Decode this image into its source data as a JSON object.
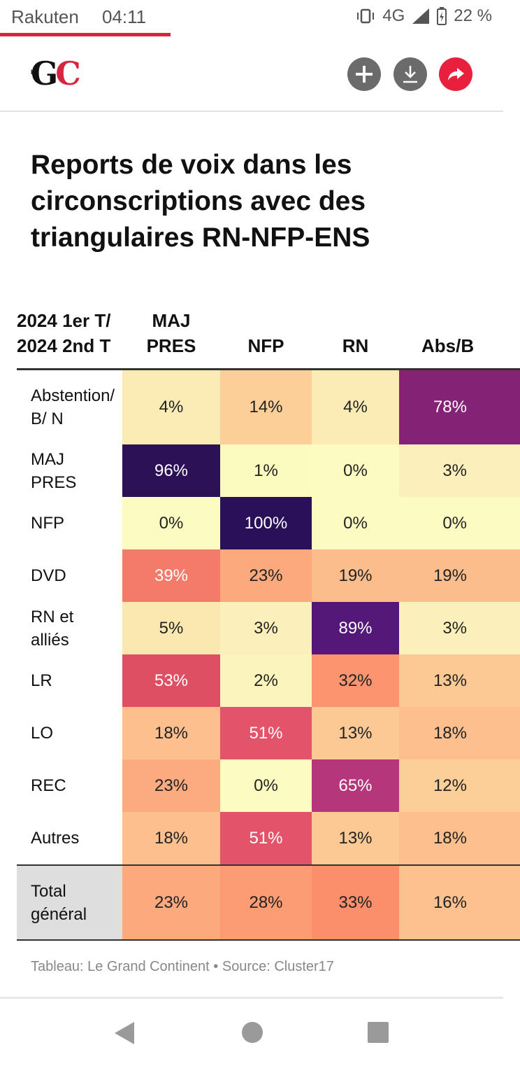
{
  "status_bar": {
    "carrier": "Rakuten",
    "time": "04:11",
    "network": "4G",
    "battery": "22 %"
  },
  "header": {
    "logo_small": "LE",
    "logo_g": "G",
    "logo_c": "C"
  },
  "article": {
    "title": "Reports de voix dans les circonscriptions avec des triangulaires RN-NFP-ENS",
    "caption": "Tableau: Le Grand Continent • Source: Cluster17"
  },
  "colors": {
    "accent_red": "#e8203e",
    "brand_red": "#d8253f"
  },
  "chart_data": {
    "type": "table",
    "row_header": "2024 1er T/ 2024 2nd T",
    "columns": [
      "MAJ PRES",
      "NFP",
      "RN",
      "Abs/B"
    ],
    "rows": [
      {
        "label": "Abstention/ B/ N",
        "values": [
          "4%",
          "14%",
          "4%",
          "78%"
        ],
        "colors": [
          "#fbebb4",
          "#fccf98",
          "#fbebb4",
          "#842276"
        ],
        "dark": [
          false,
          false,
          false,
          true
        ]
      },
      {
        "label": "MAJ PRES",
        "values": [
          "96%",
          "1%",
          "0%",
          "3%"
        ],
        "colors": [
          "#2c1157",
          "#fbfbc0",
          "#fcfcc2",
          "#fbf0bb"
        ],
        "dark": [
          true,
          false,
          false,
          false
        ]
      },
      {
        "label": "NFP",
        "values": [
          "0%",
          "100%",
          "0%",
          "0%"
        ],
        "colors": [
          "#fcfcc2",
          "#291058",
          "#fcfcc2",
          "#fcfcc2"
        ],
        "dark": [
          false,
          true,
          false,
          false
        ]
      },
      {
        "label": "DVD",
        "values": [
          "39%",
          "23%",
          "19%",
          "19%"
        ],
        "colors": [
          "#f47a6a",
          "#fca97e",
          "#fcbd8c",
          "#fcbd8c"
        ],
        "dark": [
          true,
          false,
          false,
          false
        ]
      },
      {
        "label": "RN et alliés",
        "values": [
          "5%",
          "3%",
          "89%",
          "3%"
        ],
        "colors": [
          "#fbe8b0",
          "#fbf0bb",
          "#531878",
          "#fbf0bb"
        ],
        "dark": [
          false,
          false,
          true,
          false
        ]
      },
      {
        "label": "LR",
        "values": [
          "53%",
          "2%",
          "32%",
          "13%"
        ],
        "colors": [
          "#df4f63",
          "#fcf4bd",
          "#fc956f",
          "#fcc994"
        ],
        "dark": [
          true,
          false,
          false,
          false
        ]
      },
      {
        "label": "LO",
        "values": [
          "18%",
          "51%",
          "13%",
          "18%"
        ],
        "colors": [
          "#fcbf8d",
          "#e3536a",
          "#fcc994",
          "#fcbf8d"
        ],
        "dark": [
          false,
          true,
          false,
          false
        ]
      },
      {
        "label": "REC",
        "values": [
          "23%",
          "0%",
          "65%",
          "12%"
        ],
        "colors": [
          "#fcaa7f",
          "#fcfcc2",
          "#b5367a",
          "#fccf98"
        ],
        "dark": [
          false,
          false,
          true,
          false
        ]
      },
      {
        "label": "Autres",
        "values": [
          "18%",
          "51%",
          "13%",
          "18%"
        ],
        "colors": [
          "#fcbf8d",
          "#e3536a",
          "#fcc994",
          "#fcbf8d"
        ],
        "dark": [
          false,
          true,
          false,
          false
        ]
      },
      {
        "label": "Total général",
        "values": [
          "23%",
          "28%",
          "33%",
          "16%"
        ],
        "colors": [
          "#fca97e",
          "#fc9c75",
          "#fb8e6b",
          "#fcc18f"
        ],
        "dark": [
          false,
          false,
          false,
          false
        ]
      }
    ]
  }
}
